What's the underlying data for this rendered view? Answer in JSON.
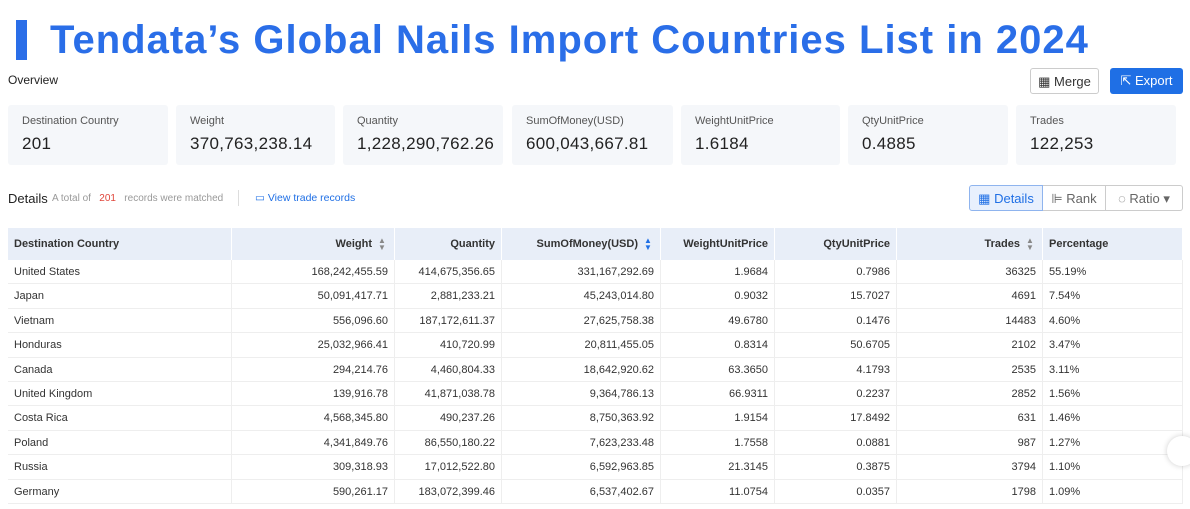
{
  "header": {
    "title": "Tendata’s Global Nails Import Countries List in 2024"
  },
  "overview": {
    "label": "Overview",
    "buttons": [
      "Merge",
      "Export"
    ],
    "cards": [
      {
        "label": "Destination Country",
        "value": "201"
      },
      {
        "label": "Weight",
        "value": "370,763,238.14"
      },
      {
        "label": "Quantity",
        "value": "1,228,290,762.26"
      },
      {
        "label": "SumOfMoney(USD)",
        "value": "600,043,667.81"
      },
      {
        "label": "WeightUnitPrice",
        "value": "1.6184"
      },
      {
        "label": "QtyUnitPrice",
        "value": "0.4885"
      },
      {
        "label": "Trades",
        "value": "122,253"
      }
    ]
  },
  "details": {
    "label": "Details",
    "total_prefix": "A total of",
    "total": "201",
    "total_suffix": "records were matched",
    "link": "View trade records",
    "tabs": [
      "Details",
      "Rank",
      "Ratio"
    ]
  },
  "table": {
    "columns": [
      "Destination Country",
      "Weight",
      "Quantity",
      "SumOfMoney(USD)",
      "WeightUnitPrice",
      "QtyUnitPrice",
      "Trades",
      "Percentage"
    ],
    "rows": [
      [
        "United States",
        "168,242,455.59",
        "414,675,356.65",
        "331,167,292.69",
        "1.9684",
        "0.7986",
        "36325",
        "55.19%"
      ],
      [
        "Japan",
        "50,091,417.71",
        "2,881,233.21",
        "45,243,014.80",
        "0.9032",
        "15.7027",
        "4691",
        "7.54%"
      ],
      [
        "Vietnam",
        "556,096.60",
        "187,172,611.37",
        "27,625,758.38",
        "49.6780",
        "0.1476",
        "14483",
        "4.60%"
      ],
      [
        "Honduras",
        "25,032,966.41",
        "410,720.99",
        "20,811,455.05",
        "0.8314",
        "50.6705",
        "2102",
        "3.47%"
      ],
      [
        "Canada",
        "294,214.76",
        "4,460,804.33",
        "18,642,920.62",
        "63.3650",
        "4.1793",
        "2535",
        "3.11%"
      ],
      [
        "United Kingdom",
        "139,916.78",
        "41,871,038.78",
        "9,364,786.13",
        "66.9311",
        "0.2237",
        "2852",
        "1.56%"
      ],
      [
        "Costa Rica",
        "4,568,345.80",
        "490,237.26",
        "8,750,363.92",
        "1.9154",
        "17.8492",
        "631",
        "1.46%"
      ],
      [
        "Poland",
        "4,341,849.76",
        "86,550,180.22",
        "7,623,233.48",
        "1.7558",
        "0.0881",
        "987",
        "1.27%"
      ],
      [
        "Russia",
        "309,318.93",
        "17,012,522.80",
        "6,592,963.85",
        "21.3145",
        "0.3875",
        "3794",
        "1.10%"
      ],
      [
        "Germany",
        "590,261.17",
        "183,072,399.46",
        "6,537,402.67",
        "11.0754",
        "0.0357",
        "1798",
        "1.09%"
      ]
    ]
  }
}
